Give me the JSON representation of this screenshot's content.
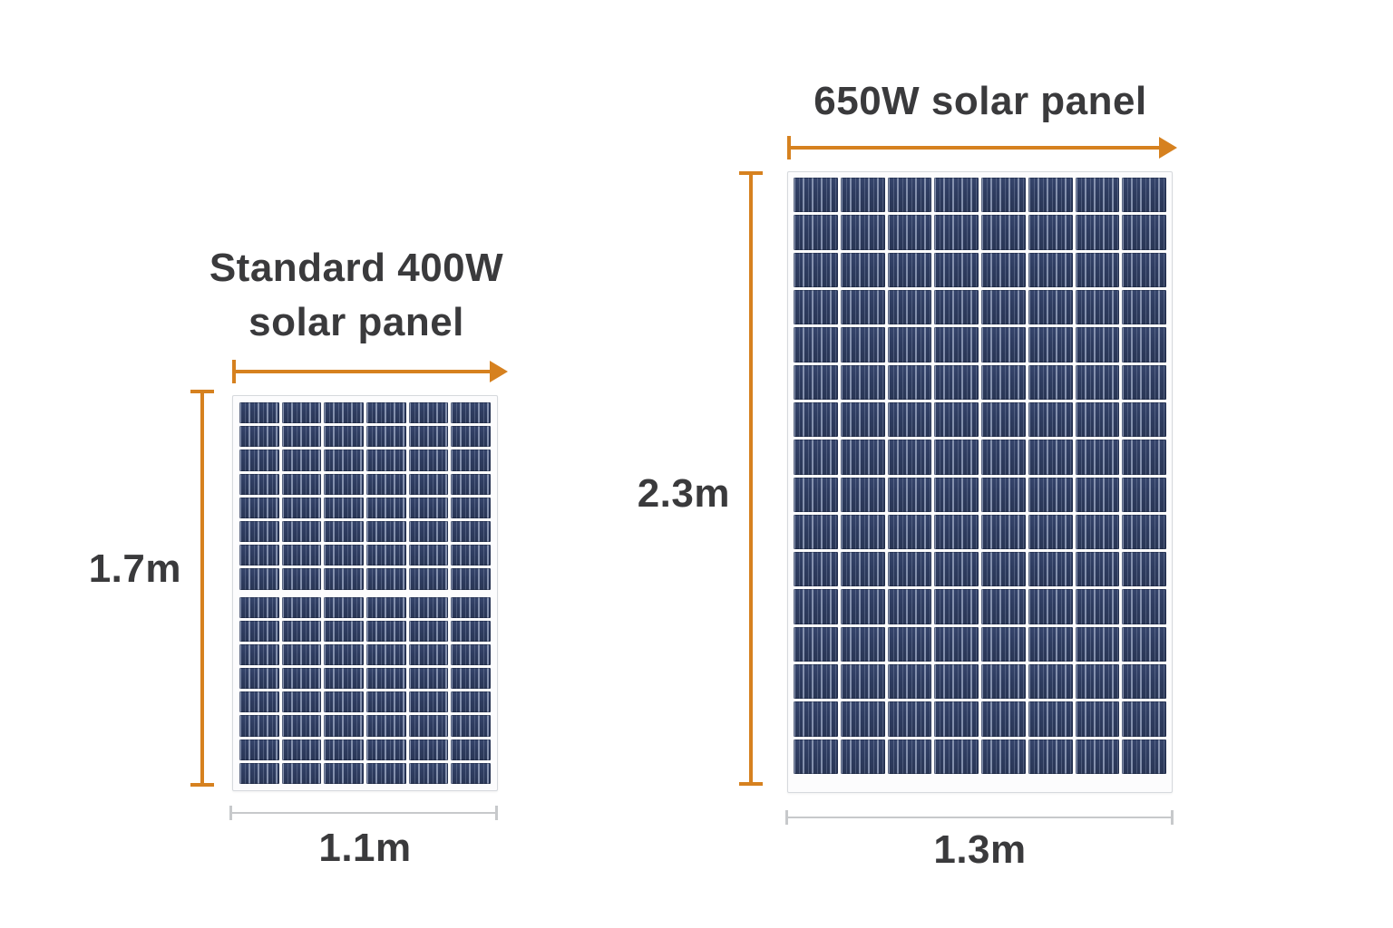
{
  "diagram": {
    "left_panel": {
      "title_lines": [
        "Standard 400W",
        "solar panel"
      ],
      "height_label": "1.7m",
      "width_label": "1.1m",
      "grid": {
        "columns": 6,
        "rows": 16,
        "halves": [
          8,
          8
        ]
      }
    },
    "right_panel": {
      "title": "650W solar panel",
      "height_label": "2.3m",
      "width_label": "1.3m",
      "grid": {
        "columns": 8,
        "rows": 16,
        "halves": [
          16
        ]
      }
    }
  },
  "colors": {
    "arrow_orange": "#D6811F",
    "dim_gray": "#C7C9CB",
    "text": "#3A3A3C",
    "frame_bg": "#FCFCFD",
    "frame_border": "#D6D9DD",
    "cell_base_top": "#36456C",
    "cell_base_bottom": "#293655",
    "cell_stripe": "#8E9AB6"
  }
}
